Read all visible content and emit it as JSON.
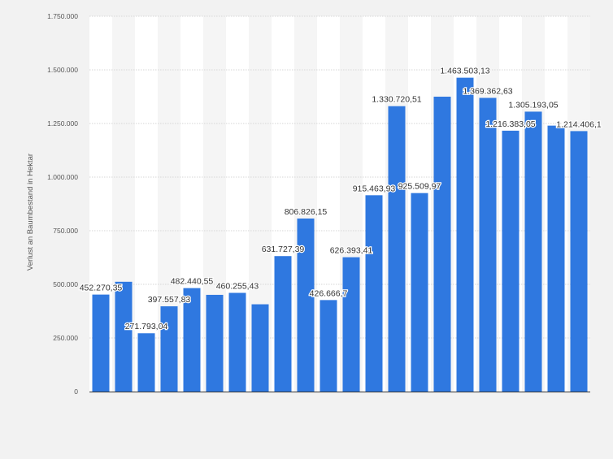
{
  "chart_data": {
    "type": "bar",
    "title": "",
    "xlabel": "",
    "ylabel": "Verlust an Baumbestand in Hektar",
    "ylim": [
      0,
      1750000
    ],
    "y_ticks": [
      0,
      250000,
      500000,
      750000,
      1000000,
      1250000,
      1500000,
      1750000
    ],
    "y_tick_labels": [
      "0",
      "250.000",
      "500.000",
      "750.000",
      "1.000.000",
      "1.250.000",
      "1.500.000",
      "1.750.000"
    ],
    "grid": true,
    "legend": "none",
    "bar_color": "#2f78e0",
    "series": [
      {
        "values": [
          452270.35,
          512000,
          271793.04,
          397557.83,
          482440.55,
          451000,
          460255.43,
          407000,
          631727.39,
          806826.15,
          426666.7,
          626393.41,
          915463.93,
          1330720.51,
          925509.97,
          1375000,
          1463503.13,
          1369362.63,
          1216383.05,
          1305193.05,
          1240000,
          1214406.1
        ],
        "labels": [
          "452.270,35",
          "",
          "271.793,04",
          "397.557,83",
          "482.440,55",
          "",
          "460.255,43",
          "",
          "631.727,39",
          "806.826,15",
          "426.666,7",
          "626.393,41",
          "915.463,93",
          "1.330.720,51",
          "925.509,97",
          "",
          "1.463.503,13",
          "1.369.362,63",
          "1.216.383,05",
          "1.305.193,05",
          "",
          "1.214.406,1"
        ]
      }
    ]
  }
}
